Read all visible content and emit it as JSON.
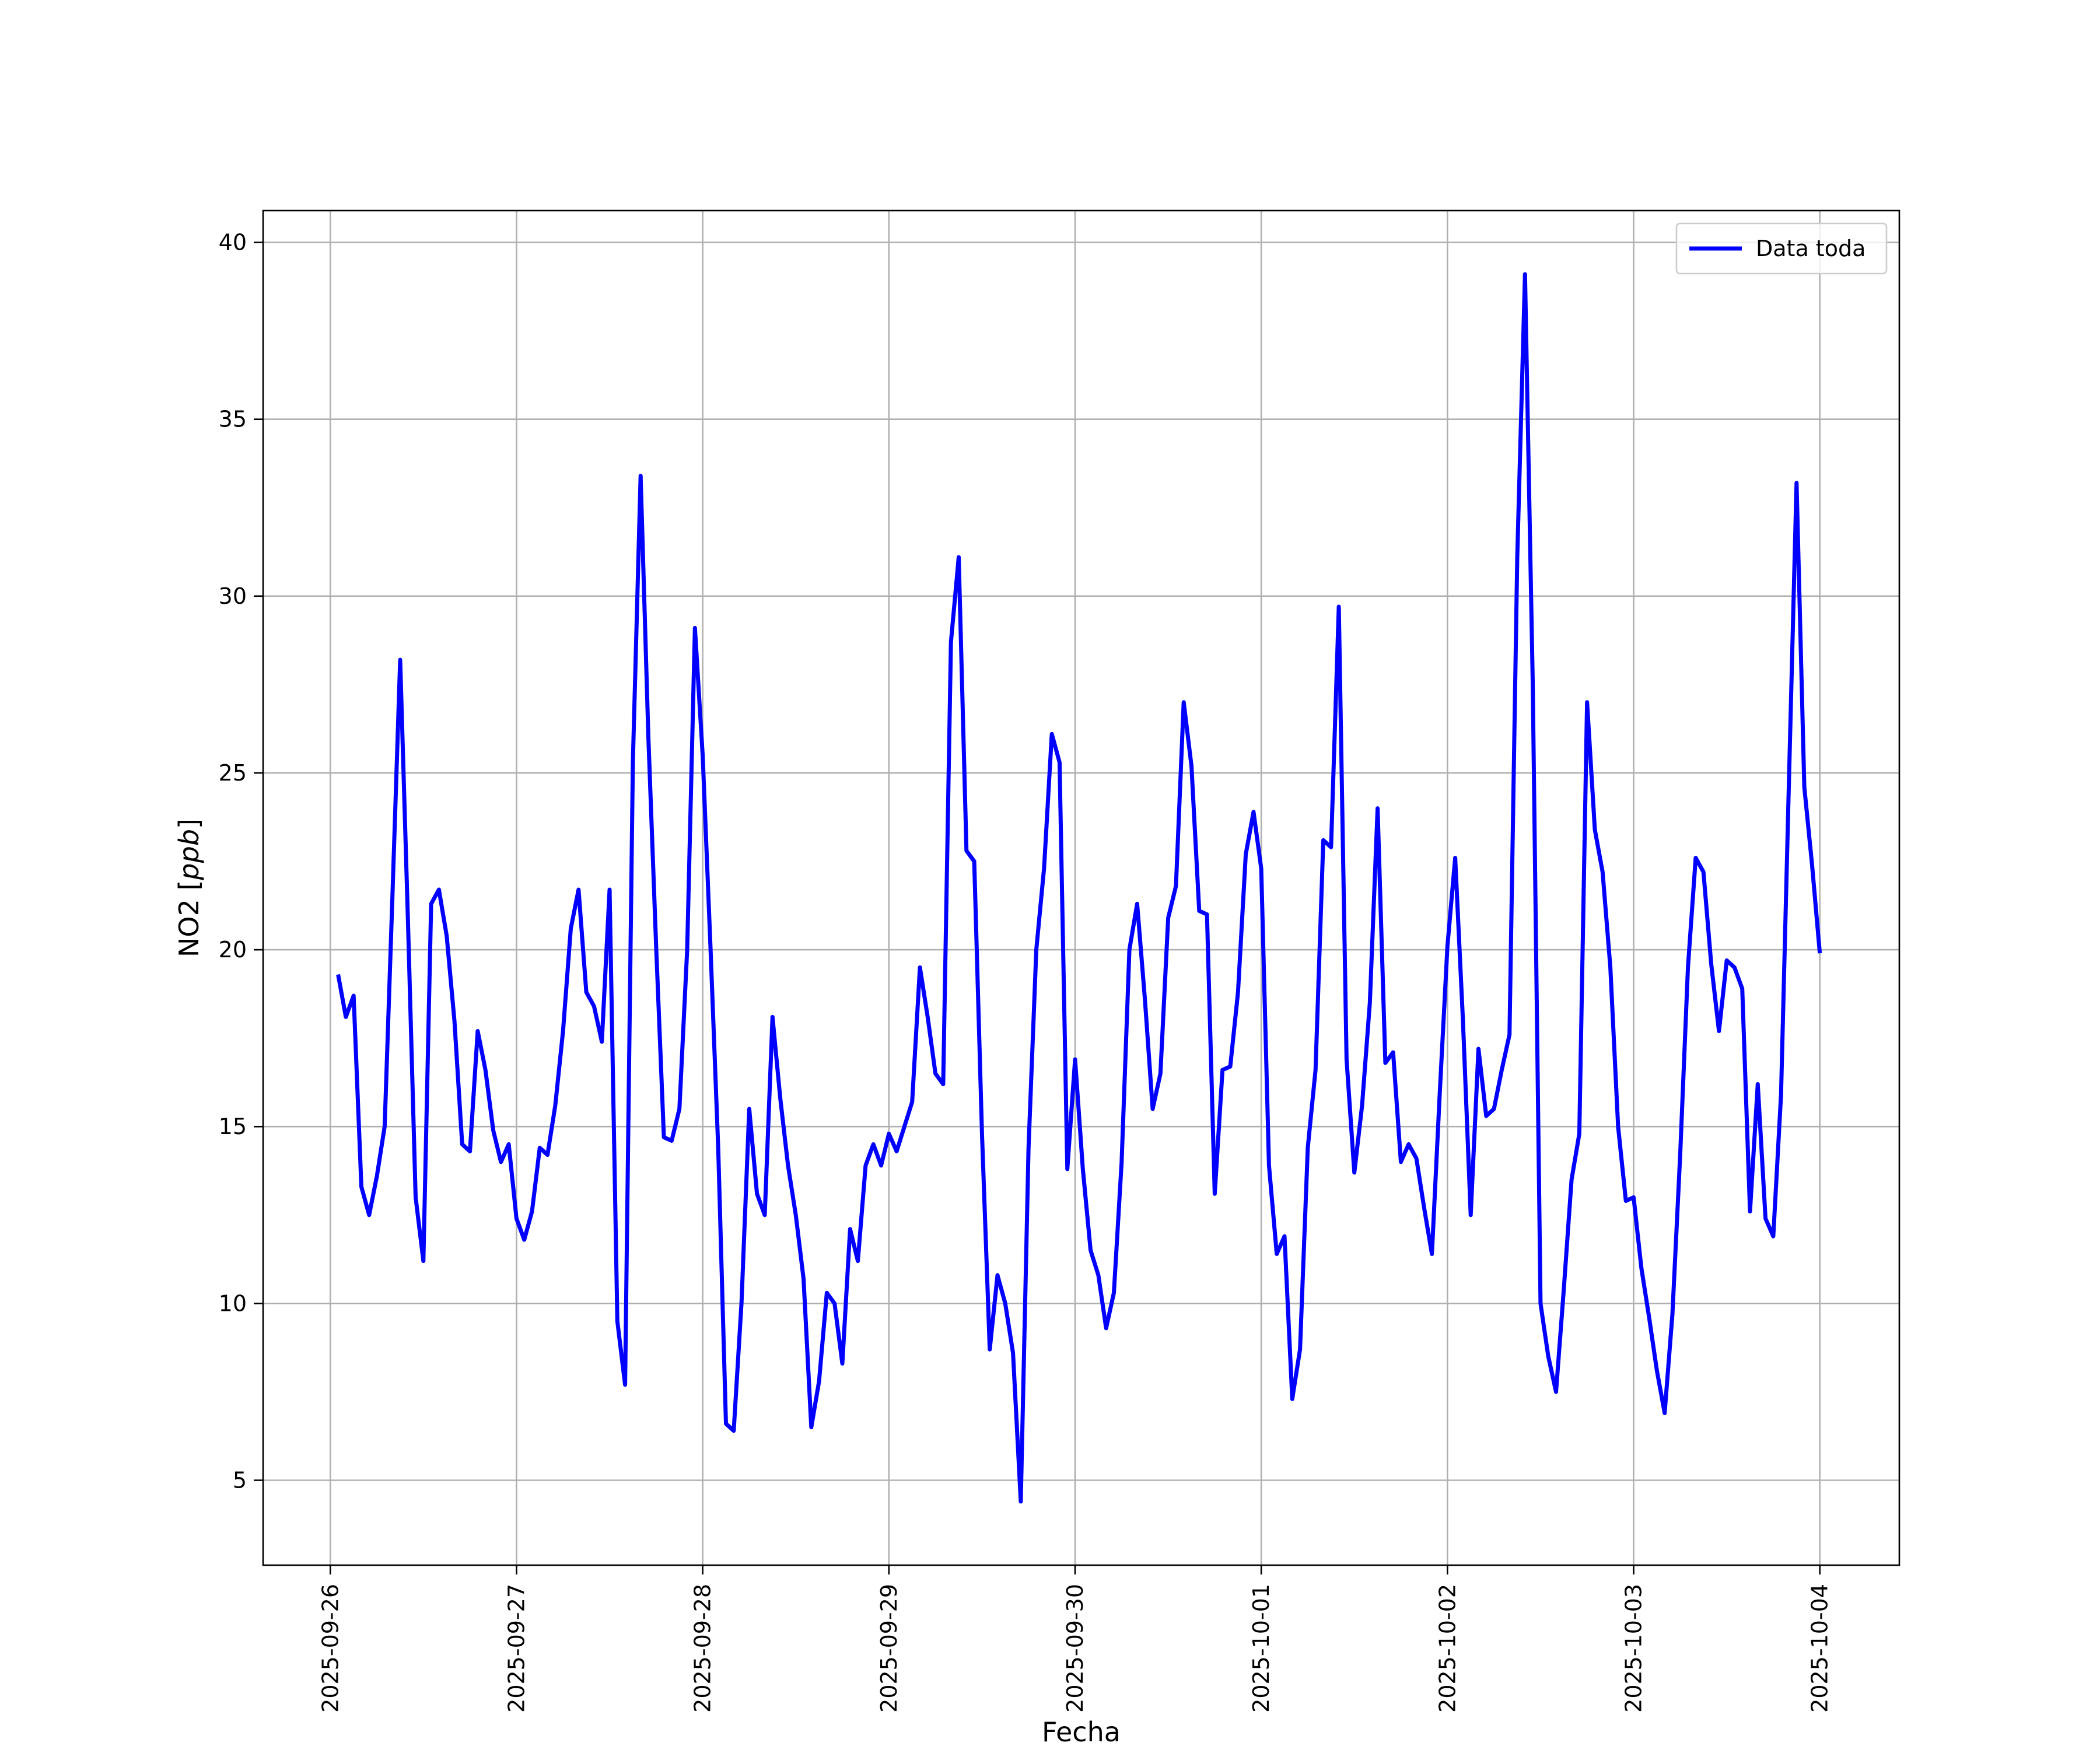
{
  "chart_data": {
    "type": "line",
    "xlabel": "Fecha",
    "ylabel": "NO2 [ppb]",
    "ylabel_main": "NO2 [",
    "ylabel_unit": "ppb",
    "ylabel_close": "]",
    "x_axis": "date",
    "xlim": [
      "2025-09-25T15:20",
      "2025-10-04T10:15"
    ],
    "ylim": [
      2.6,
      40.9
    ],
    "x_ticks": [
      "2025-09-26",
      "2025-09-27",
      "2025-09-28",
      "2025-09-29",
      "2025-09-30",
      "2025-10-01",
      "2025-10-02",
      "2025-10-03",
      "2025-10-04"
    ],
    "y_ticks": [
      5,
      10,
      15,
      20,
      25,
      30,
      35,
      40
    ],
    "grid": true,
    "legend_position": "top-right",
    "colors": {
      "series": "#0000ff",
      "grid": "#b0b0b0"
    },
    "series": [
      {
        "name": "Data toda",
        "x_start": "2025-09-26T01:00",
        "step_hours": 1,
        "values": [
          19.3,
          18.1,
          18.7,
          13.3,
          12.5,
          13.6,
          15.0,
          21.5,
          28.2,
          20.9,
          13.0,
          11.2,
          21.3,
          21.7,
          20.4,
          18.0,
          14.5,
          14.3,
          17.7,
          16.6,
          14.9,
          14.0,
          14.5,
          12.4,
          11.8,
          12.6,
          14.4,
          14.2,
          15.6,
          17.7,
          20.6,
          21.7,
          18.8,
          18.4,
          17.4,
          21.7,
          9.5,
          7.7,
          25.3,
          33.4,
          26.0,
          20.1,
          14.7,
          14.6,
          15.5,
          20.0,
          29.1,
          25.5,
          20.1,
          14.4,
          6.6,
          6.4,
          10.0,
          15.5,
          13.1,
          12.5,
          18.1,
          15.8,
          13.9,
          12.5,
          10.7,
          6.5,
          7.8,
          10.3,
          10.0,
          8.3,
          12.1,
          11.2,
          13.9,
          14.5,
          13.9,
          14.8,
          14.3,
          15.0,
          15.7,
          19.5,
          18.1,
          16.5,
          16.2,
          28.7,
          31.1,
          22.8,
          22.5,
          14.8,
          8.7,
          10.8,
          10.0,
          8.6,
          4.4,
          14.4,
          20.0,
          22.3,
          26.1,
          25.3,
          13.8,
          16.9,
          13.8,
          11.5,
          10.8,
          9.3,
          10.3,
          14.0,
          20.0,
          21.3,
          18.6,
          15.5,
          16.5,
          20.9,
          21.8,
          27.0,
          25.2,
          21.1,
          21.0,
          13.1,
          16.6,
          16.7,
          18.8,
          22.7,
          23.9,
          22.3,
          13.9,
          11.4,
          11.9,
          7.3,
          8.7,
          14.4,
          16.6,
          23.1,
          22.9,
          29.7,
          16.9,
          13.7,
          15.6,
          18.5,
          24.0,
          16.8,
          17.1,
          14.0,
          14.5,
          14.1,
          12.7,
          11.4,
          15.9,
          20.1,
          22.6,
          18.0,
          12.5,
          17.2,
          15.3,
          15.5,
          16.6,
          17.6,
          31.1,
          39.1,
          27.5,
          10.0,
          8.5,
          7.5,
          10.4,
          13.5,
          14.8,
          27.0,
          23.4,
          22.2,
          19.5,
          15.0,
          12.9,
          13.0,
          11.0,
          9.6,
          8.1,
          6.9,
          9.7,
          14.2,
          19.5,
          22.6,
          22.2,
          19.6,
          17.7,
          19.7,
          19.5,
          18.9,
          12.6,
          16.2,
          12.4,
          11.9,
          15.9,
          24.6,
          33.2,
          24.6,
          22.4,
          19.9
        ]
      }
    ]
  }
}
